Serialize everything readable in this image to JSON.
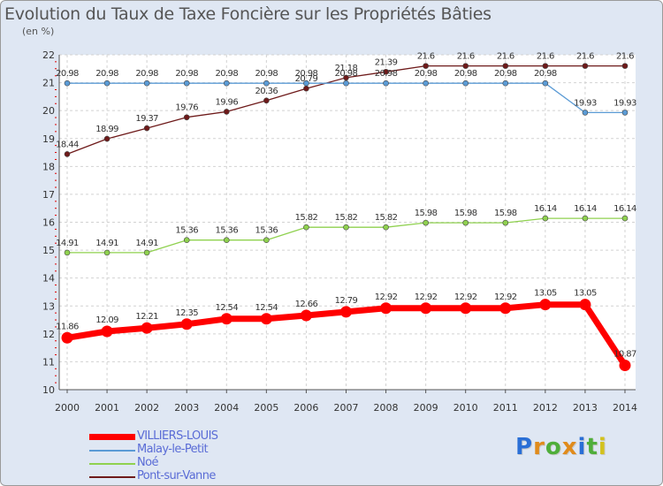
{
  "title": "Evolution du Taux de Taxe Foncière sur les Propriétés Bâties",
  "unit_label": "(en %)",
  "logo": {
    "letters": [
      "P",
      "r",
      "o",
      "x",
      "i",
      "t",
      "i"
    ],
    "colors": [
      "#2a6fd6",
      "#e08b1c",
      "#4fae3a",
      "#e08b1c",
      "#2a6fd6",
      "#4fae3a",
      "#d3c21e"
    ]
  },
  "chart_data": {
    "type": "line",
    "title": "Evolution du Taux de Taxe Foncière sur les Propriétés Bâties",
    "ylabel": "(en %)",
    "xlabel": "",
    "ylim": [
      10,
      22
    ],
    "yticks": [
      "10",
      "11",
      "12",
      "13",
      "14",
      "15",
      "16",
      "17",
      "18",
      "19",
      "20",
      "21",
      "22"
    ],
    "x": [
      "2000",
      "2001",
      "2002",
      "2003",
      "2004",
      "2005",
      "2006",
      "2007",
      "2008",
      "2009",
      "2010",
      "2011",
      "2012",
      "2013",
      "2014"
    ],
    "grid": true,
    "series": [
      {
        "name": "Pont-sur-Vanne",
        "color": "#6e1a1a",
        "labels": [
          "18.44",
          "18.99",
          "19.37",
          "19.76",
          "19.96",
          "20.36",
          "20.79",
          "21.18",
          "21.39",
          "21.6",
          "21.6",
          "21.6",
          "21.6",
          "21.6",
          "21.6"
        ],
        "values": [
          18.44,
          18.99,
          19.37,
          19.76,
          19.96,
          20.36,
          20.79,
          21.18,
          21.39,
          21.6,
          21.6,
          21.6,
          21.6,
          21.6,
          21.6
        ]
      },
      {
        "name": "Malay-le-Petit",
        "color": "#5b9bd5",
        "labels": [
          "20.98",
          "20.98",
          "20.98",
          "20.98",
          "20.98",
          "20.98",
          "20.98",
          "20.98",
          "20.98",
          "20.98",
          "20.98",
          "20.98",
          "20.98",
          "19.93",
          "19.93"
        ],
        "values": [
          20.98,
          20.98,
          20.98,
          20.98,
          20.98,
          20.98,
          20.98,
          20.98,
          20.98,
          20.98,
          20.98,
          20.98,
          20.98,
          19.93,
          19.93
        ]
      },
      {
        "name": "Noé",
        "color": "#8fd14f",
        "labels": [
          "14.91",
          "14.91",
          "14.91",
          "15.36",
          "15.36",
          "15.36",
          "15.82",
          "15.82",
          "15.82",
          "15.98",
          "15.98",
          "15.98",
          "16.14",
          "16.14",
          "16.14"
        ],
        "values": [
          14.91,
          14.91,
          14.91,
          15.36,
          15.36,
          15.36,
          15.82,
          15.82,
          15.82,
          15.98,
          15.98,
          15.98,
          16.14,
          16.14,
          16.14
        ]
      },
      {
        "name": "VILLIERS-LOUIS",
        "color": "#ff0000",
        "labels": [
          "11.86",
          "12.09",
          "12.21",
          "12.35",
          "12.54",
          "12.54",
          "12.66",
          "12.79",
          "12.92",
          "12.92",
          "12.92",
          "12.92",
          "13.05",
          "13.05",
          "10.87"
        ],
        "values": [
          11.86,
          12.09,
          12.21,
          12.35,
          12.54,
          12.54,
          12.66,
          12.79,
          12.92,
          12.92,
          12.92,
          12.92,
          13.05,
          13.05,
          10.87
        ]
      }
    ],
    "legend": {
      "position": "bottom-left",
      "entries": [
        {
          "name": "VILLIERS-LOUIS",
          "color": "#ff0000"
        },
        {
          "name": "Malay-le-Petit",
          "color": "#5b9bd5"
        },
        {
          "name": "Noé",
          "color": "#8fd14f"
        },
        {
          "name": "Pont-sur-Vanne",
          "color": "#6e1a1a"
        }
      ]
    }
  }
}
